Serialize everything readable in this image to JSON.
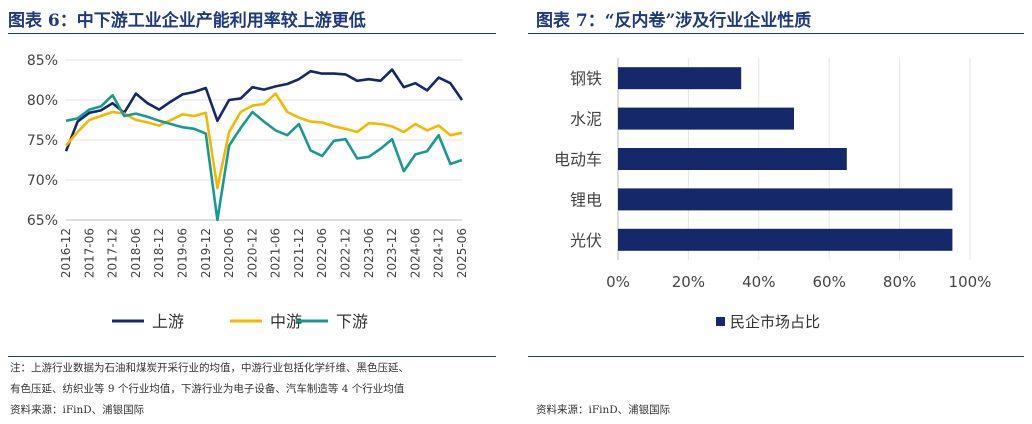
{
  "left_panel": {
    "title": "图表 6：中下游工业企业产能利用率较上游更低",
    "notes": [
      "注：上游行业数据为石油和煤炭开采行业的均值，中游行业包括化学纤维、黑色压延、",
      "有色压延、纺织业等 9 个行业均值，下游行业为电子设备、汽车制造等 4 个行业均值"
    ],
    "source": "资料来源：iFinD、浦银国际"
  },
  "right_panel": {
    "title": "图表 7：“反内卷”涉及行业企业性质",
    "source": "资料来源：iFinD、浦银国际"
  },
  "colors": {
    "upstream": "#14286a",
    "midstream": "#f5b800",
    "downstream": "#1a9993",
    "bar": "#14286a"
  },
  "chart_data": [
    {
      "type": "line",
      "title": "中下游工业企业产能利用率较上游更低",
      "ylim": [
        65,
        85
      ],
      "yticks": [
        "65%",
        "70%",
        "75%",
        "80%",
        "85%"
      ],
      "ytick_values": [
        65,
        70,
        75,
        80,
        85
      ],
      "x": [
        "2016-12",
        "2017-03",
        "2017-06",
        "2017-09",
        "2017-12",
        "2018-03",
        "2018-06",
        "2018-09",
        "2018-12",
        "2019-03",
        "2019-06",
        "2019-09",
        "2019-12",
        "2020-03",
        "2020-06",
        "2020-09",
        "2020-12",
        "2021-03",
        "2021-06",
        "2021-09",
        "2021-12",
        "2022-03",
        "2022-06",
        "2022-09",
        "2022-12",
        "2023-03",
        "2023-06",
        "2023-09",
        "2023-12",
        "2024-03",
        "2024-06",
        "2024-09",
        "2024-12",
        "2025-03",
        "2025-06"
      ],
      "xticks": [
        "2016-12",
        "2017-06",
        "2017-12",
        "2018-06",
        "2018-12",
        "2019-06",
        "2019-12",
        "2020-06",
        "2020-12",
        "2021-06",
        "2021-12",
        "2022-06",
        "2022-12",
        "2023-06",
        "2023-12",
        "2024-06",
        "2024-12",
        "2025-06"
      ],
      "series": [
        {
          "name": "上游",
          "values": [
            73.6,
            77.3,
            78.4,
            78.7,
            79.6,
            78.4,
            80.8,
            79.6,
            78.8,
            79.8,
            80.7,
            81.0,
            81.5,
            77.4,
            80.0,
            80.2,
            81.6,
            81.3,
            81.7,
            82.0,
            82.6,
            83.6,
            83.3,
            83.3,
            83.2,
            82.4,
            82.6,
            82.4,
            83.8,
            81.6,
            82.1,
            81.2,
            82.8,
            82.1,
            80.0
          ]
        },
        {
          "name": "中游",
          "values": [
            74.3,
            76.0,
            77.5,
            78.0,
            78.5,
            78.3,
            77.5,
            77.2,
            76.8,
            77.5,
            78.2,
            78.0,
            78.4,
            69.0,
            76.0,
            78.5,
            79.3,
            79.5,
            80.8,
            78.5,
            77.8,
            77.3,
            77.2,
            76.7,
            76.4,
            76.0,
            77.1,
            77.0,
            76.7,
            76.0,
            77.0,
            76.2,
            76.8,
            75.6,
            75.9
          ]
        },
        {
          "name": "下游",
          "values": [
            77.4,
            77.7,
            78.8,
            79.2,
            80.6,
            78.0,
            78.3,
            77.9,
            77.4,
            77.0,
            76.6,
            76.4,
            75.8,
            65.0,
            74.3,
            76.5,
            78.5,
            77.3,
            76.2,
            75.6,
            77.0,
            73.7,
            73.0,
            74.9,
            75.1,
            72.7,
            72.9,
            73.9,
            75.1,
            71.1,
            73.2,
            73.6,
            75.6,
            72.0,
            72.5
          ]
        }
      ]
    },
    {
      "type": "bar",
      "orientation": "horizontal",
      "categories": [
        "钢铁",
        "水泥",
        "电动车",
        "锂电",
        "光伏"
      ],
      "values": [
        35,
        50,
        65,
        95,
        95
      ],
      "xlim": [
        0,
        100
      ],
      "xticks": [
        "0%",
        "20%",
        "40%",
        "60%",
        "80%",
        "100%"
      ],
      "xtick_values": [
        0,
        20,
        40,
        60,
        80,
        100
      ],
      "legend": "民企市场占比"
    }
  ]
}
